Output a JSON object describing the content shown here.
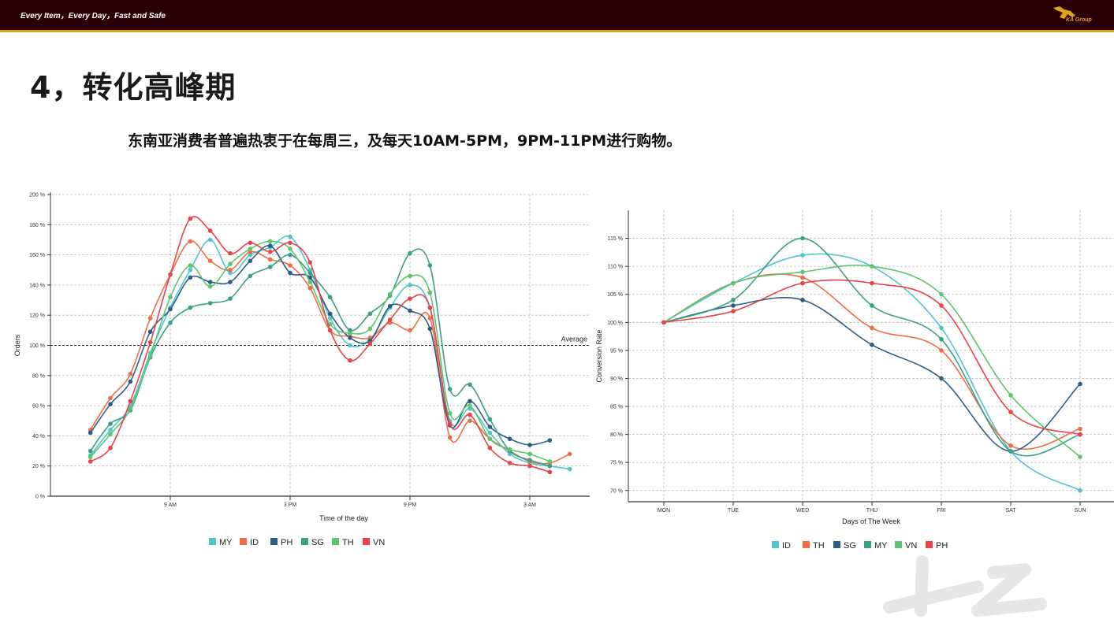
{
  "header": {
    "slogan": "Every Item，Every Day，Fast and Safe",
    "logo_text": "KA Group"
  },
  "title": "4，转化高峰期",
  "subtitle": "东南亚消费者普遍热衷于在每周三，及每天10AM-5PM，9PM-11PM进行购物。",
  "chart_data": [
    {
      "type": "line",
      "xlabel": "Time of the day",
      "ylabel": "Orders",
      "ylim": [
        0,
        200
      ],
      "y_ticks": [
        0,
        20,
        40,
        60,
        80,
        100,
        120,
        140,
        160,
        180,
        200
      ],
      "y_tick_suffix": " %",
      "x_tick_labels": [
        "9 AM",
        "3 PM",
        "9 PM",
        "3 AM"
      ],
      "x_tick_hours": [
        9,
        15,
        21,
        27
      ],
      "reference_line": {
        "y": 100,
        "label": "Average",
        "style": "dashed"
      },
      "grid": true,
      "legend_position": "bottom",
      "x": [
        5,
        6,
        7,
        8,
        9,
        10,
        11,
        12,
        13,
        14,
        15,
        16,
        17,
        18,
        19,
        20,
        21,
        22,
        23,
        24,
        25,
        26,
        27,
        28,
        29
      ],
      "series": [
        {
          "name": "MY",
          "color": "#4ec5cf",
          "values": [
            27,
            44,
            60,
            95,
            125,
            150,
            170,
            148,
            160,
            165,
            172,
            150,
            118,
            100,
            104,
            125,
            140,
            125,
            50,
            58,
            42,
            28,
            22,
            20,
            18
          ]
        },
        {
          "name": "ID",
          "color": "#f06d44",
          "values": [
            44,
            65,
            81,
            118,
            147,
            169,
            156,
            150,
            162,
            157,
            153,
            138,
            110,
            106,
            105,
            115,
            110,
            118,
            39,
            50,
            38,
            30,
            23,
            22,
            28
          ]
        },
        {
          "name": "PH",
          "color": "#2c5f86",
          "values": [
            42,
            61,
            76,
            109,
            124,
            145,
            142,
            142,
            156,
            166,
            148,
            145,
            121,
            105,
            103,
            126,
            123,
            111,
            47,
            63,
            46,
            38,
            34,
            37,
            null
          ]
        },
        {
          "name": "SG",
          "color": "#3a9f87",
          "values": [
            30,
            48,
            57,
            92,
            115,
            125,
            128,
            131,
            146,
            152,
            160,
            148,
            132,
            110,
            121,
            133,
            161,
            153,
            71,
            74,
            51,
            30,
            24,
            20,
            null
          ]
        },
        {
          "name": "TH",
          "color": "#5cc56e",
          "values": [
            26,
            41,
            58,
            93,
            132,
            153,
            139,
            154,
            164,
            169,
            164,
            142,
            114,
            108,
            111,
            134,
            146,
            135,
            55,
            60,
            38,
            31,
            28,
            23,
            null
          ]
        },
        {
          "name": "VN",
          "color": "#e84349",
          "values": [
            23,
            32,
            63,
            102,
            147,
            184,
            176,
            161,
            168,
            162,
            168,
            155,
            110,
            90,
            101,
            117,
            131,
            125,
            48,
            54,
            32,
            22,
            20,
            16,
            null
          ]
        }
      ]
    },
    {
      "type": "line",
      "xlabel": "Days of The Week",
      "ylabel": "Conversion Rate",
      "ylim": [
        68,
        120
      ],
      "y_ticks": [
        70,
        75,
        80,
        85,
        90,
        95,
        100,
        105,
        110,
        115
      ],
      "y_tick_suffix": " %",
      "grid": true,
      "legend_position": "bottom",
      "categories": [
        "MON",
        "TUE",
        "WED",
        "THU",
        "FRI",
        "SAT",
        "SUN"
      ],
      "series": [
        {
          "name": "ID",
          "color": "#4ec5cf",
          "values": [
            100,
            107,
            112,
            110,
            99,
            77,
            70
          ]
        },
        {
          "name": "TH",
          "color": "#f06d44",
          "values": [
            100,
            107,
            108,
            99,
            95,
            78,
            81
          ]
        },
        {
          "name": "SG",
          "color": "#2c5f86",
          "values": [
            100,
            103,
            104,
            96,
            90,
            77,
            89
          ]
        },
        {
          "name": "MY",
          "color": "#3a9f87",
          "values": [
            100,
            104,
            115,
            103,
            97,
            77,
            80
          ]
        },
        {
          "name": "VN",
          "color": "#5cc56e",
          "values": [
            100,
            107,
            109,
            110,
            105,
            87,
            76
          ]
        },
        {
          "name": "PH",
          "color": "#e84349",
          "values": [
            100,
            102,
            107,
            107,
            103,
            84,
            80
          ]
        }
      ]
    }
  ]
}
